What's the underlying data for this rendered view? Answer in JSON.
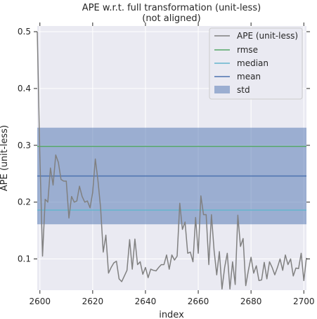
{
  "chart_data": {
    "type": "line",
    "title": [
      "APE w.r.t. full transformation (unit-less)",
      "(not aligned)"
    ],
    "xlabel": "index",
    "ylabel": "APE (unit-less)",
    "xlim": [
      2599,
      2701
    ],
    "ylim": [
      0.045,
      0.51
    ],
    "xticks": [
      2600,
      2620,
      2640,
      2660,
      2680,
      2700
    ],
    "yticks": [
      0.1,
      0.2,
      0.3,
      0.4,
      0.5
    ],
    "ytick_labels": [
      "0.1",
      "0.2",
      "0.3",
      "0.4",
      "0.5"
    ],
    "grid": true,
    "legend_position": "top-right",
    "series": [
      {
        "name": "APE (unit-less)",
        "color": "#808080",
        "x_start": 2599,
        "x_step": 1,
        "values": [
          0.5,
          0.28,
          0.105,
          0.205,
          0.2,
          0.26,
          0.23,
          0.283,
          0.27,
          0.24,
          0.237,
          0.237,
          0.172,
          0.21,
          0.2,
          0.202,
          0.228,
          0.21,
          0.2,
          0.202,
          0.19,
          0.217,
          0.276,
          0.238,
          0.19,
          0.112,
          0.142,
          0.075,
          0.085,
          0.093,
          0.096,
          0.065,
          0.06,
          0.07,
          0.08,
          0.134,
          0.082,
          0.135,
          0.09,
          0.095,
          0.073,
          0.085,
          0.067,
          0.082,
          0.08,
          0.079,
          0.085,
          0.09,
          0.09,
          0.107,
          0.082,
          0.107,
          0.098,
          0.105,
          0.198,
          0.152,
          0.165,
          0.11,
          0.112,
          0.095,
          0.173,
          0.11,
          0.211,
          0.178,
          0.178,
          0.09,
          0.178,
          0.115,
          0.072,
          0.113,
          0.047,
          0.085,
          0.11,
          0.047,
          0.095,
          0.055,
          0.177,
          0.122,
          0.136,
          0.053,
          0.08,
          0.103,
          0.075,
          0.088,
          0.062,
          0.063,
          0.094,
          0.065,
          0.095,
          0.085,
          0.072,
          0.085,
          0.1,
          0.08,
          0.107,
          0.09,
          0.1,
          0.07,
          0.084,
          0.083,
          0.11,
          0.062,
          0.102
        ]
      }
    ],
    "rmse": {
      "name": "rmse",
      "value": 0.298,
      "color": "#55a868"
    },
    "median": {
      "name": "median",
      "value": 0.186,
      "color": "#64b5cd"
    },
    "mean": {
      "name": "mean",
      "value": 0.246,
      "color": "#4c72b0"
    },
    "std": {
      "name": "std",
      "lower": 0.161,
      "upper": 0.331,
      "color": "#4c72b0"
    }
  }
}
